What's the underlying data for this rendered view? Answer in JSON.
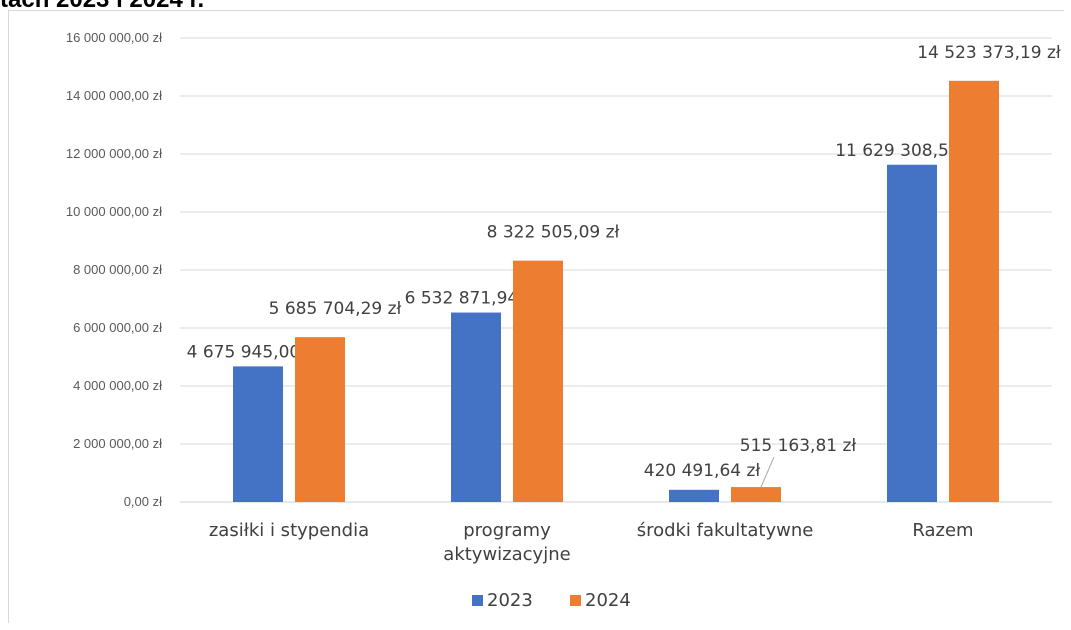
{
  "heading_fragment": "tach 2023 i 2024 r.",
  "chart_data": {
    "type": "bar",
    "title": "",
    "categories": [
      "zasiłki i stypendia",
      "programy\naktywizacyjne",
      "środki fakultatywne",
      "Razem"
    ],
    "series": [
      {
        "name": "2023",
        "color": "#4472c4",
        "values": [
          4675945.0,
          6532871.94,
          420491.64,
          11629308.58
        ],
        "labels": [
          "4 675 945,00 zł",
          "6 532 871,94 zł",
          "420 491,64 zł",
          "11 629 308,58 zł"
        ]
      },
      {
        "name": "2024",
        "color": "#ed7d31",
        "values": [
          5685704.29,
          8322505.09,
          515163.81,
          14523373.19
        ],
        "labels": [
          "5 685 704,29 zł",
          "8 322 505,09 zł",
          "515 163,81 zł",
          "14 523 373,19 zł"
        ]
      }
    ],
    "ylim": [
      0,
      16000000
    ],
    "yticks": [
      0,
      2000000,
      4000000,
      6000000,
      8000000,
      10000000,
      12000000,
      14000000,
      16000000
    ],
    "ytick_labels": [
      "0,00 zł",
      "2 000 000,00 zł",
      "4 000 000,00 zł",
      "6 000 000,00 zł",
      "8 000 000,00 zł",
      "10 000 000,00 zł",
      "12 000 000,00 zł",
      "14 000 000,00 zł",
      "16 000 000,00 zł"
    ],
    "xlabel": "",
    "ylabel": "",
    "grid": true,
    "legend_position": "bottom"
  }
}
